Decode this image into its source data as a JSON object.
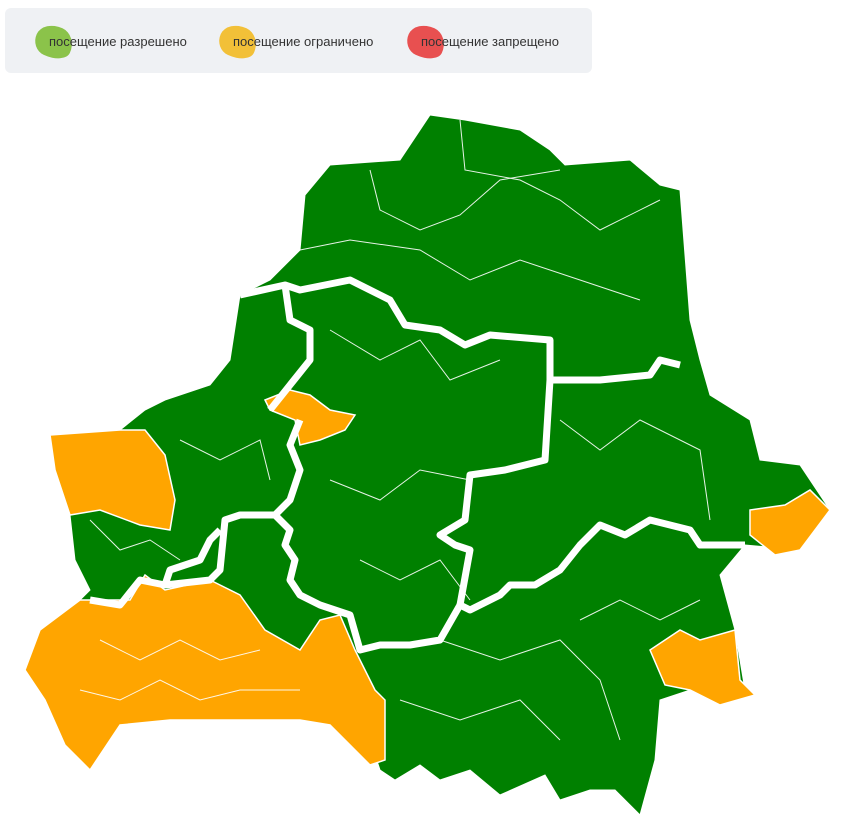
{
  "legend": [
    {
      "label": "посещение разрешено",
      "color": "#8bc34a"
    },
    {
      "label": "посещение ограничено",
      "color": "#f2c038"
    },
    {
      "label": "посещение запрещено",
      "color": "#e85050"
    }
  ],
  "map": {
    "colors": {
      "allowed": "#008000",
      "restricted": "#ffa500",
      "border": "#ffffff"
    }
  }
}
